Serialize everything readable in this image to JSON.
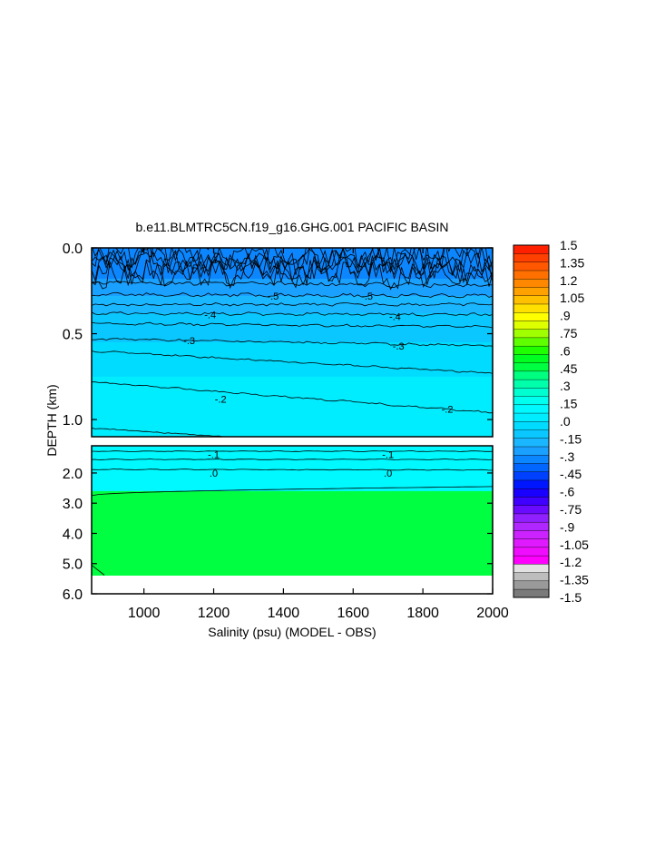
{
  "chart_data": {
    "type": "heatmap",
    "title": "b.e11.BLMTRC5CN.f19_g16.GHG.001 PACIFIC BASIN",
    "xlabel": "Salinity (psu) (MODEL - OBS)",
    "ylabel": "DEPTH (km)",
    "x_range": [
      850,
      2000
    ],
    "x_ticks": [
      1000,
      1200,
      1400,
      1600,
      1800,
      2000
    ],
    "x_tick_labels": [
      "1000",
      "1200",
      "1400",
      "1600",
      "1800",
      "2000"
    ],
    "upper_panel": {
      "y_range": [
        0.0,
        1.1
      ],
      "y_ticks": [
        0.0,
        0.5,
        1.0
      ],
      "y_tick_labels": [
        "0.0",
        "0.5",
        "1.0"
      ]
    },
    "lower_panel": {
      "y_range": [
        1.1,
        6.0
      ],
      "y_ticks": [
        2.0,
        3.0,
        4.0,
        5.0,
        6.0
      ],
      "y_tick_labels": [
        "2.0",
        "3.0",
        "4.0",
        "5.0",
        "6.0"
      ],
      "data_bottom_depth": 5.4
    },
    "colorbar": {
      "min": -1.5,
      "max": 1.5,
      "step": 0.075,
      "labels": [
        "1.5",
        "1.35",
        "1.2",
        "1.05",
        ".9",
        ".75",
        ".6",
        ".45",
        ".3",
        ".15",
        ".0",
        "-.15",
        "-.3",
        "-.45",
        "-.6",
        "-.75",
        "-.9",
        "-1.05",
        "-1.2",
        "-1.35",
        "-1.5"
      ],
      "colors": [
        "#7a7a7a",
        "#9a9a9a",
        "#bdbdbd",
        "#e2e2e2",
        "#ff00ff",
        "#f00dff",
        "#e01aff",
        "#cc22ff",
        "#b026ff",
        "#9020ff",
        "#6a0aff",
        "#4000ff",
        "#1a00ff",
        "#0016ff",
        "#0040ff",
        "#0066ff",
        "#0c86ff",
        "#1aa0ff",
        "#1ab6ff",
        "#0ac8ff",
        "#00dcff",
        "#00ecff",
        "#00f8ff",
        "#00ffee",
        "#00ffd0",
        "#00ffaa",
        "#00ff80",
        "#00ff40",
        "#00ff20",
        "#20ff00",
        "#60ff00",
        "#a0ff00",
        "#ddff00",
        "#ffff00",
        "#ffe000",
        "#ffc000",
        "#ffa200",
        "#ff8800",
        "#ff7000",
        "#ff5800",
        "#ff4000",
        "#ff2000"
      ]
    },
    "contour_labels": [
      {
        "text": "-.5",
        "x": 1370,
        "depth": 0.28
      },
      {
        "text": "-.5",
        "x": 1640,
        "depth": 0.28
      },
      {
        "text": "-.4",
        "x": 1190,
        "depth": 0.39
      },
      {
        "text": "-.4",
        "x": 1720,
        "depth": 0.4
      },
      {
        "text": "-.3",
        "x": 1130,
        "depth": 0.54
      },
      {
        "text": "-.3",
        "x": 1730,
        "depth": 0.57
      },
      {
        "text": "-.2",
        "x": 1220,
        "depth": 0.88
      },
      {
        "text": "-.2",
        "x": 1870,
        "depth": 0.94
      },
      {
        "text": "-.1",
        "x": 1200,
        "depth": 1.38
      },
      {
        "text": "-.1",
        "x": 1700,
        "depth": 1.38
      },
      {
        "text": ".0",
        "x": 1200,
        "depth": 2.0
      },
      {
        "text": ".0",
        "x": 1700,
        "depth": 2.0
      }
    ]
  }
}
